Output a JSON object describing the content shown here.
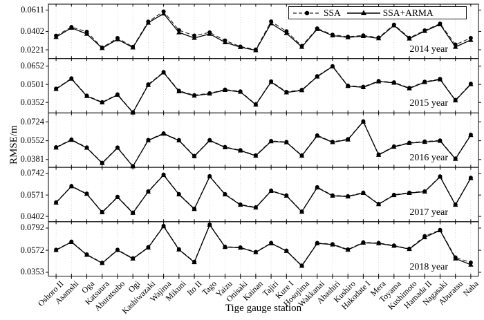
{
  "figure": {
    "y_axis_title": "RMSE/m",
    "x_axis_title": "Tige gauge station"
  },
  "legend": {
    "items": [
      {
        "name": "SSA",
        "marker": "filled-circle-on-dashed-line"
      },
      {
        "name": "SSA+ARMA",
        "marker": "filled-triangle-on-solid-line"
      }
    ],
    "position": "top-right-of-first-panel"
  },
  "chart_data": {
    "type": "line",
    "xlabel": "Tige gauge station",
    "ylabel": "RMSE/m",
    "grid": "light dotted vertical line at every station",
    "legend_position": "top-right of 2014 panel",
    "categories": [
      "Oshoro II",
      "Asamshi",
      "Oga",
      "Katsuura",
      "Aburatsubo",
      "Ogi",
      "Kashiwazaki",
      "Wajima",
      "Mikuni",
      "Ito II",
      "Tago",
      "Yaizu",
      "Onisaki",
      "Kainan",
      "Tajiri",
      "Kure I",
      "Hosojima",
      "Wakkanai",
      "Abashiri",
      "Kushiro",
      "Hakodate I",
      "Mera",
      "Toyama",
      "Kushimoto",
      "Hamada II",
      "Nagasaki",
      "Aburatsu",
      "Naha"
    ],
    "panels": [
      {
        "label": "2014 year",
        "yticks": [
          0.0221,
          0.0402,
          0.0611
        ],
        "ylim": [
          0.0135,
          0.067
        ],
        "series": [
          {
            "name": "SSA",
            "marker": "circle",
            "line": "dashed",
            "values": [
              0.036,
              0.0445,
              0.0398,
              0.0243,
              0.0337,
              0.0249,
              0.0498,
              0.0598,
              0.0413,
              0.0361,
              0.0392,
              0.0312,
              0.0253,
              0.0223,
              0.05,
              0.0403,
              0.0259,
              0.0431,
              0.0369,
              0.035,
              0.0362,
              0.0341,
              0.0468,
              0.0339,
              0.0412,
              0.0478,
              0.0272,
              0.0337
            ]
          },
          {
            "name": "SSA+ARMA",
            "marker": "triangle",
            "line": "solid",
            "values": [
              0.0346,
              0.0437,
              0.0377,
              0.0237,
              0.0324,
              0.0243,
              0.0487,
              0.0577,
              0.0392,
              0.0337,
              0.0377,
              0.0294,
              0.0247,
              0.0216,
              0.0481,
              0.0384,
              0.0249,
              0.0424,
              0.0361,
              0.0343,
              0.0355,
              0.0333,
              0.0461,
              0.0331,
              0.0405,
              0.0471,
              0.0249,
              0.0317
            ]
          }
        ]
      },
      {
        "label": "2015 year",
        "yticks": [
          0.0352,
          0.0501,
          0.0652
        ],
        "ylim": [
          0.0265,
          0.0715
        ],
        "series": [
          {
            "name": "SSA",
            "marker": "circle",
            "line": "dashed",
            "values": [
              0.0466,
              0.0551,
              0.0408,
              0.0354,
              0.0418,
              0.0271,
              0.0501,
              0.0603,
              0.0448,
              0.0412,
              0.0428,
              0.0458,
              0.0443,
              0.0336,
              0.0526,
              0.0439,
              0.0456,
              0.0569,
              0.0652,
              0.0491,
              0.0481,
              0.0529,
              0.0518,
              0.0472,
              0.0523,
              0.0546,
              0.0372,
              0.0507
            ]
          },
          {
            "name": "SSA+ARMA",
            "marker": "triangle",
            "line": "solid",
            "values": [
              0.0462,
              0.0547,
              0.0404,
              0.0351,
              0.0414,
              0.0268,
              0.0496,
              0.0599,
              0.0443,
              0.0407,
              0.0424,
              0.0454,
              0.0439,
              0.0333,
              0.0521,
              0.0434,
              0.0452,
              0.0565,
              0.0649,
              0.0487,
              0.0477,
              0.0525,
              0.0514,
              0.0468,
              0.0519,
              0.0542,
              0.0368,
              0.0502
            ]
          }
        ]
      },
      {
        "label": "2016 year",
        "yticks": [
          0.0381,
          0.0552,
          0.0724
        ],
        "ylim": [
          0.031,
          0.0805
        ],
        "series": [
          {
            "name": "SSA",
            "marker": "circle",
            "line": "dashed",
            "values": [
              0.0493,
              0.0563,
              0.0491,
              0.0351,
              0.0491,
              0.0321,
              0.0559,
              0.0619,
              0.0558,
              0.0414,
              0.0558,
              0.0495,
              0.0466,
              0.0419,
              0.055,
              0.0541,
              0.0419,
              0.0601,
              0.0542,
              0.0566,
              0.0729,
              0.0427,
              0.05,
              0.0534,
              0.0545,
              0.0554,
              0.039,
              0.0607
            ]
          },
          {
            "name": "SSA+ARMA",
            "marker": "triangle",
            "line": "solid",
            "values": [
              0.0489,
              0.0559,
              0.0487,
              0.0348,
              0.0487,
              0.0318,
              0.0555,
              0.0615,
              0.0554,
              0.041,
              0.0554,
              0.0491,
              0.0462,
              0.0415,
              0.0546,
              0.0537,
              0.0415,
              0.0597,
              0.0538,
              0.0562,
              0.0725,
              0.0423,
              0.0496,
              0.053,
              0.0541,
              0.055,
              0.0386,
              0.0603
            ]
          }
        ]
      },
      {
        "label": "2017 year",
        "yticks": [
          0.0402,
          0.0571,
          0.0742
        ],
        "ylim": [
          0.036,
          0.079
        ],
        "series": [
          {
            "name": "SSA",
            "marker": "circle",
            "line": "dashed",
            "values": [
              0.0513,
              0.0642,
              0.0582,
              0.0437,
              0.0557,
              0.0432,
              0.06,
              0.0732,
              0.0578,
              0.0463,
              0.072,
              0.0578,
              0.0496,
              0.0474,
              0.0606,
              0.0568,
              0.0441,
              0.0633,
              0.0568,
              0.0562,
              0.059,
              0.0501,
              0.0573,
              0.059,
              0.06,
              0.0718,
              0.0496,
              0.0707
            ]
          },
          {
            "name": "SSA+ARMA",
            "marker": "triangle",
            "line": "solid",
            "values": [
              0.051,
              0.0639,
              0.0579,
              0.0434,
              0.0554,
              0.0429,
              0.0597,
              0.0729,
              0.0575,
              0.046,
              0.0717,
              0.0575,
              0.0493,
              0.0471,
              0.0603,
              0.0565,
              0.0438,
              0.063,
              0.0565,
              0.0559,
              0.0587,
              0.0498,
              0.057,
              0.0587,
              0.0597,
              0.0715,
              0.0493,
              0.0704
            ]
          }
        ]
      },
      {
        "label": "2018 year",
        "yticks": [
          0.0353,
          0.0572,
          0.0792
        ],
        "ylim": [
          0.0315,
          0.0855
        ],
        "series": [
          {
            "name": "SSA",
            "marker": "circle",
            "line": "dashed",
            "values": [
              0.0577,
              0.0657,
              0.053,
              0.0447,
              0.0577,
              0.0492,
              0.0602,
              0.0813,
              0.0582,
              0.0457,
              0.0827,
              0.0607,
              0.06,
              0.0555,
              0.0644,
              0.0568,
              0.042,
              0.0644,
              0.0632,
              0.058,
              0.065,
              0.0644,
              0.0619,
              0.0587,
              0.0712,
              0.0773,
              0.05,
              0.045
            ]
          },
          {
            "name": "SSA+ARMA",
            "marker": "triangle",
            "line": "solid",
            "values": [
              0.0573,
              0.0653,
              0.0526,
              0.0444,
              0.0573,
              0.0488,
              0.0598,
              0.0809,
              0.0578,
              0.0453,
              0.0823,
              0.0603,
              0.0596,
              0.0551,
              0.064,
              0.0564,
              0.0416,
              0.064,
              0.0628,
              0.0576,
              0.0646,
              0.064,
              0.0615,
              0.0583,
              0.07,
              0.0769,
              0.0489,
              0.0428
            ]
          }
        ]
      }
    ],
    "colors": {
      "line": "#000000",
      "dashed_line": "#2a2a2a",
      "grid": "#c9c9c9"
    }
  }
}
